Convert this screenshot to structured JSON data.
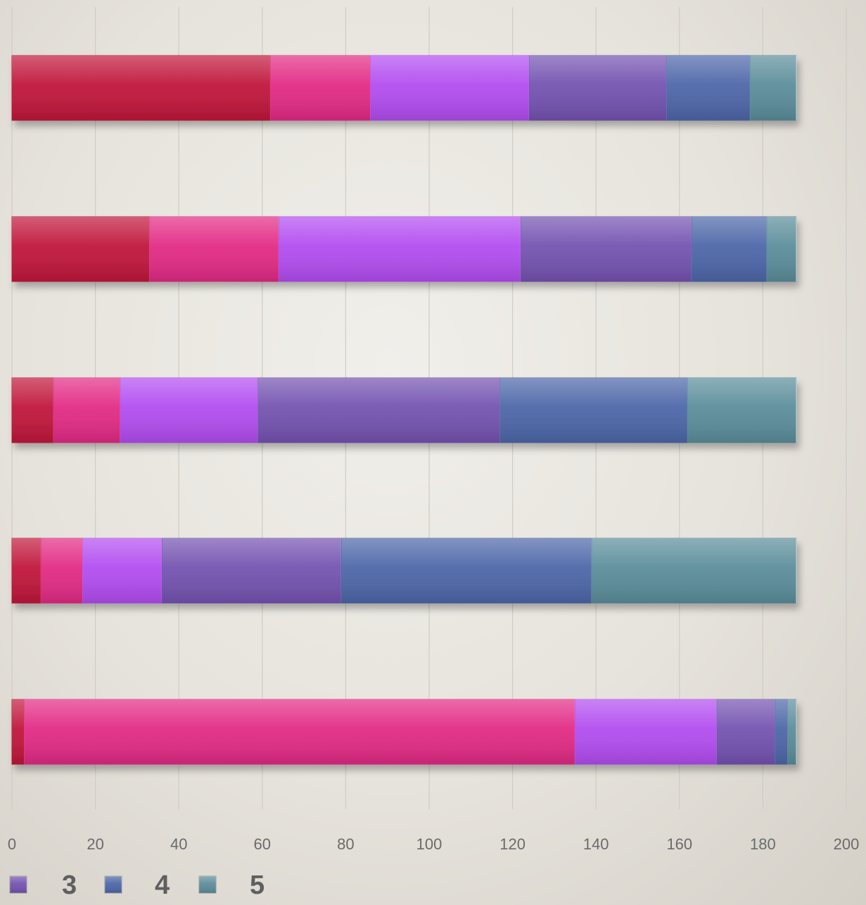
{
  "chart_data": {
    "type": "bar",
    "orientation": "horizontal",
    "stacked": true,
    "categories": [
      "",
      "",
      "",
      "",
      ""
    ],
    "series": [
      {
        "color": "#c0163a",
        "values": [
          62,
          33,
          10,
          7,
          3
        ]
      },
      {
        "color": "#e22a84",
        "values": [
          24,
          31,
          16,
          10,
          132
        ]
      },
      {
        "color": "#b24cf0",
        "values": [
          38,
          58,
          33,
          19,
          34
        ]
      },
      {
        "name": "3",
        "color": "#7352b0",
        "values": [
          33,
          41,
          58,
          43,
          14
        ]
      },
      {
        "name": "4",
        "color": "#4c66a8",
        "values": [
          20,
          18,
          45,
          60,
          3
        ]
      },
      {
        "name": "5",
        "color": "#5a8d9a",
        "values": [
          11,
          7,
          26,
          49,
          2
        ]
      }
    ],
    "xlim": [
      0,
      200
    ],
    "xticks": [
      "0",
      "20",
      "40",
      "60",
      "80",
      "100",
      "120",
      "140",
      "160",
      "180",
      "200"
    ],
    "grid": "vertical",
    "legend": {
      "position": "bottom-left",
      "entries": [
        "3",
        "4",
        "5"
      ]
    }
  }
}
